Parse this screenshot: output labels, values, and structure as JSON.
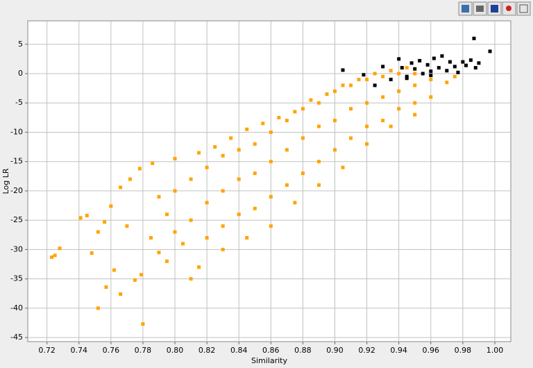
{
  "chart_data": {
    "type": "scatter",
    "x_label": "Similarity",
    "y_label": "Log LR",
    "xlim": [
      0.708,
      1.01
    ],
    "ylim": [
      -45.7,
      9.0
    ],
    "xticks": [
      0.72,
      0.74,
      0.76,
      0.78,
      {
        "value": 0.8,
        "label": "0.80"
      },
      0.82,
      0.84,
      0.86,
      0.88,
      {
        "value": 0.9,
        "label": "0.90"
      },
      0.92,
      0.94,
      0.96,
      0.98,
      {
        "value": 1.0,
        "label": "1.00"
      }
    ],
    "yticks": [
      -45,
      -40,
      -35,
      -30,
      -25,
      -20,
      -15,
      -10,
      -5,
      0,
      5
    ],
    "grid": true,
    "series": [
      {
        "color": "#ffa500",
        "x": [
          0.723,
          0.725,
          0.728,
          0.741,
          0.745,
          0.748,
          0.752,
          0.757,
          0.762,
          0.766,
          0.78,
          0.775,
          0.779,
          0.752,
          0.756,
          0.76,
          0.766,
          0.772,
          0.778,
          0.786,
          0.79,
          0.77,
          0.785,
          0.79,
          0.795,
          0.8,
          0.8,
          0.8,
          0.81,
          0.81,
          0.81,
          0.815,
          0.82,
          0.82,
          0.82,
          0.825,
          0.83,
          0.83,
          0.83,
          0.835,
          0.84,
          0.84,
          0.84,
          0.845,
          0.85,
          0.85,
          0.85,
          0.855,
          0.86,
          0.86,
          0.86,
          0.865,
          0.87,
          0.87,
          0.87,
          0.875,
          0.88,
          0.88,
          0.88,
          0.885,
          0.89,
          0.89,
          0.89,
          0.895,
          0.9,
          0.9,
          0.9,
          0.905,
          0.91,
          0.91,
          0.91,
          0.915,
          0.92,
          0.92,
          0.92,
          0.925,
          0.93,
          0.93,
          0.93,
          0.935,
          0.94,
          0.94,
          0.94,
          0.945,
          0.95,
          0.95,
          0.95,
          0.96,
          0.96,
          0.97,
          0.975,
          0.805,
          0.795,
          0.815,
          0.83,
          0.845,
          0.86,
          0.875,
          0.89,
          0.905,
          0.92,
          0.935,
          0.95
        ],
        "values": [
          -31.3,
          -31,
          -29.8,
          -24.6,
          -24.2,
          -30.6,
          -40,
          -36.4,
          -33.5,
          -37.6,
          -42.7,
          -35.2,
          -34.3,
          -27,
          -25.3,
          -22.6,
          -19.4,
          -18,
          -16.2,
          -15.3,
          -21,
          -26,
          -28,
          -30.5,
          -32,
          -27,
          -20,
          -14.5,
          -35,
          -25,
          -18,
          -13.5,
          -28,
          -22,
          -16,
          -12.5,
          -26,
          -20,
          -14,
          -11,
          -24,
          -18,
          -13,
          -9.5,
          -23,
          -17,
          -12,
          -8.5,
          -21,
          -15,
          -10,
          -7.5,
          -19,
          -13,
          -8,
          -6.5,
          -17,
          -11,
          -6,
          -4.5,
          -15,
          -9,
          -5,
          -3.5,
          -13,
          -8,
          -3,
          -2,
          -11,
          -6,
          -2,
          -1,
          -9,
          -5,
          -1,
          0,
          -8,
          -4,
          -0.5,
          0.5,
          -6,
          -3,
          0,
          1,
          -5,
          -2,
          0,
          -4,
          -1,
          -1.5,
          -0.5,
          -29,
          -24,
          -33,
          -30,
          -28,
          -26,
          -22,
          -19,
          -16,
          -12,
          -9,
          -7
        ]
      },
      {
        "color": "#000000",
        "x": [
          0.905,
          0.918,
          0.925,
          0.93,
          0.935,
          0.94,
          0.942,
          0.945,
          0.948,
          0.95,
          0.953,
          0.955,
          0.958,
          0.96,
          0.962,
          0.965,
          0.967,
          0.97,
          0.972,
          0.975,
          0.977,
          0.98,
          0.982,
          0.985,
          0.987,
          0.988,
          0.99,
          0.997,
          0.945,
          0.96
        ],
        "values": [
          0.6,
          -0.2,
          -2,
          1.2,
          -1,
          2.5,
          1,
          -0.5,
          1.8,
          0.8,
          2.2,
          0,
          1.5,
          -0.3,
          2.6,
          1,
          3,
          0.5,
          2,
          1.2,
          0.2,
          2,
          1.4,
          2.3,
          6,
          1,
          1.8,
          3.8,
          -0.8,
          0.4
        ]
      }
    ]
  }
}
